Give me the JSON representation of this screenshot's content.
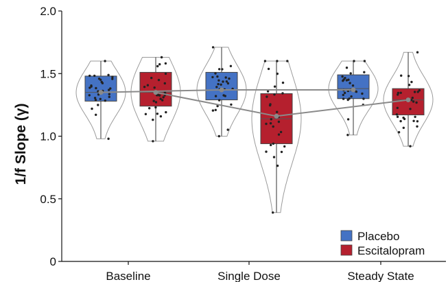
{
  "chart_data": {
    "type": "box",
    "title": "",
    "xlabel": "",
    "ylabel": "1/f Slope (γ)",
    "ylim": [
      0,
      2.0
    ],
    "yticks": [
      "0",
      "0.5",
      "1.0",
      "1.5",
      "2.0"
    ],
    "categories": [
      "Baseline",
      "Single Dose",
      "Steady State"
    ],
    "legend_position": "bottom-right",
    "grid": false,
    "series": [
      {
        "name": "Placebo",
        "color": "#4472c4",
        "boxes": [
          {
            "min": 0.98,
            "q1": 1.28,
            "median": 1.35,
            "q3": 1.48,
            "max": 1.6,
            "mean": 1.35
          },
          {
            "min": 1.0,
            "q1": 1.29,
            "median": 1.37,
            "q3": 1.51,
            "max": 1.71,
            "mean": 1.37
          },
          {
            "min": 1.01,
            "q1": 1.3,
            "median": 1.38,
            "q3": 1.49,
            "max": 1.6,
            "mean": 1.37
          }
        ]
      },
      {
        "name": "Escitalopram",
        "color": "#b5202e",
        "boxes": [
          {
            "min": 0.96,
            "q1": 1.24,
            "median": 1.35,
            "q3": 1.51,
            "max": 1.63,
            "mean": 1.35
          },
          {
            "min": 0.39,
            "q1": 0.94,
            "median": 1.14,
            "q3": 1.34,
            "max": 1.6,
            "mean": 1.16
          },
          {
            "min": 0.92,
            "q1": 1.17,
            "median": 1.29,
            "q3": 1.38,
            "max": 1.67,
            "mean": 1.29
          }
        ]
      }
    ]
  }
}
